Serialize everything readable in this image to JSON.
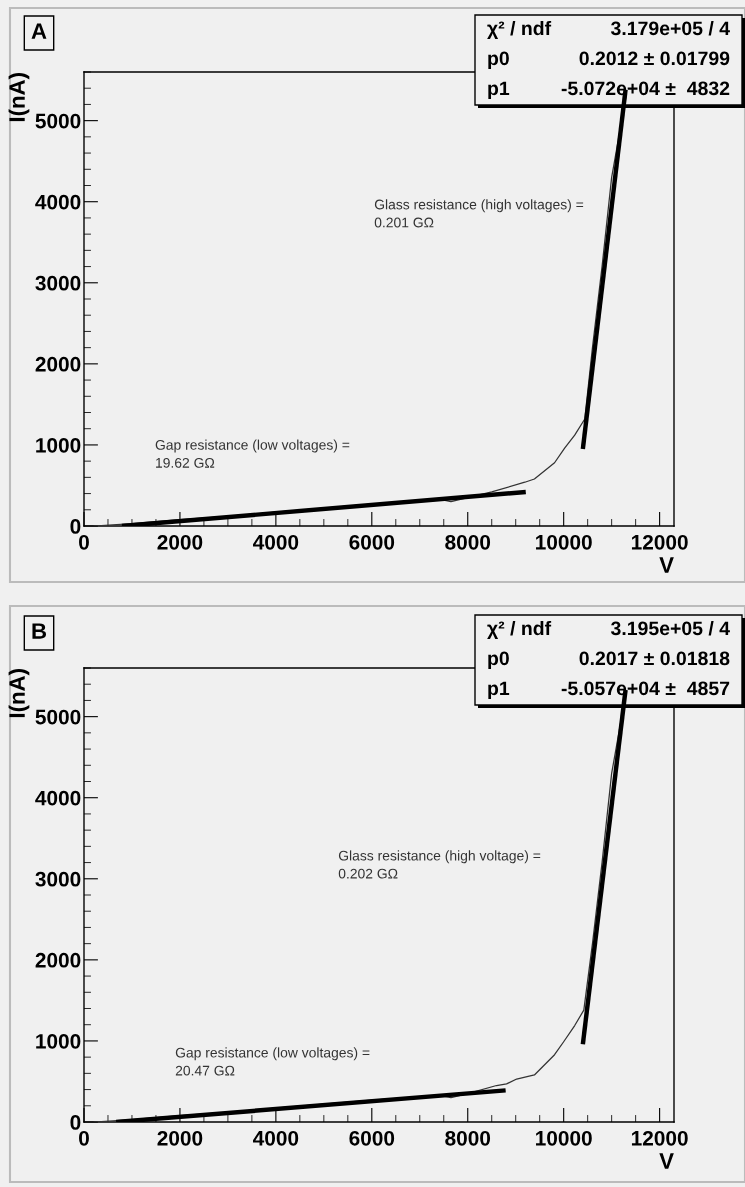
{
  "chart_data": [
    {
      "type": "line",
      "title": "A",
      "xlabel": "V",
      "ylabel": "I(nA)",
      "xlim": [
        0,
        12300
      ],
      "ylim": [
        0,
        5600
      ],
      "xticks": [
        0,
        2000,
        4000,
        6000,
        8000,
        10000,
        12000
      ],
      "yticks": [
        0,
        1000,
        2000,
        3000,
        4000,
        5000
      ],
      "series": [
        {
          "color": "#333333",
          "x": [
            200,
            1000,
            2000,
            3000,
            4000,
            5000,
            6000,
            7000,
            7500,
            7650,
            8000,
            8500,
            9190,
            9390,
            9810,
            10020,
            10230,
            10440,
            10600,
            10800,
            11000,
            11300
          ],
          "values": [
            0,
            30,
            80,
            120,
            170,
            220,
            270,
            310,
            320,
            300,
            350,
            420,
            540,
            580,
            780,
            960,
            1120,
            1320,
            2200,
            3200,
            4300,
            5300
          ]
        },
        {
          "color": "#000000",
          "x": [
            790,
            9210
          ],
          "values": [
            0,
            420
          ]
        },
        {
          "color": "#000000",
          "x": [
            10400,
            11290
          ],
          "values": [
            950,
            5380
          ]
        }
      ],
      "annotations": [
        "Gap resistance (low voltages) =\n19.62 GΩ",
        "Glass resistance (high voltages) =\n0.201 GΩ",
        "χ² / ndf",
        "3.179e+05 / 4",
        "p0",
        "0.2012 ± 0.01799",
        "p1",
        "-5.072e+04 ±  4832"
      ]
    },
    {
      "type": "line",
      "title": "B",
      "xlabel": "V",
      "ylabel": "I(nA)",
      "xlim": [
        0,
        12300
      ],
      "ylim": [
        0,
        5600
      ],
      "xticks": [
        0,
        2000,
        4000,
        6000,
        8000,
        10000,
        12000
      ],
      "yticks": [
        0,
        1000,
        2000,
        3000,
        4000,
        5000
      ],
      "series": [
        {
          "color": "#333333",
          "x": [
            200,
            1000,
            2000,
            3000,
            4000,
            5000,
            6000,
            7000,
            7500,
            7650,
            8000,
            8600,
            8810,
            9020,
            9390,
            9810,
            10000,
            10230,
            10420,
            10600,
            10800,
            11000,
            11300
          ],
          "values": [
            0,
            30,
            80,
            120,
            170,
            220,
            270,
            310,
            320,
            300,
            350,
            450,
            470,
            530,
            580,
            830,
            990,
            1190,
            1380,
            2200,
            3200,
            4300,
            5300
          ]
        },
        {
          "color": "#000000",
          "x": [
            670,
            8790
          ],
          "values": [
            0,
            390
          ]
        },
        {
          "color": "#000000",
          "x": [
            10400,
            11290
          ],
          "values": [
            960,
            5330
          ]
        }
      ],
      "annotations": [
        "Gap resistance (low voltages) =\n20.47 GΩ",
        "Glass resistance (high voltage) =\n0.202 GΩ",
        "χ² / ndf",
        "3.195e+05 / 4",
        "p0",
        "0.2017 ± 0.01818",
        "p1",
        "-5.057e+04 ±  4857"
      ]
    }
  ]
}
